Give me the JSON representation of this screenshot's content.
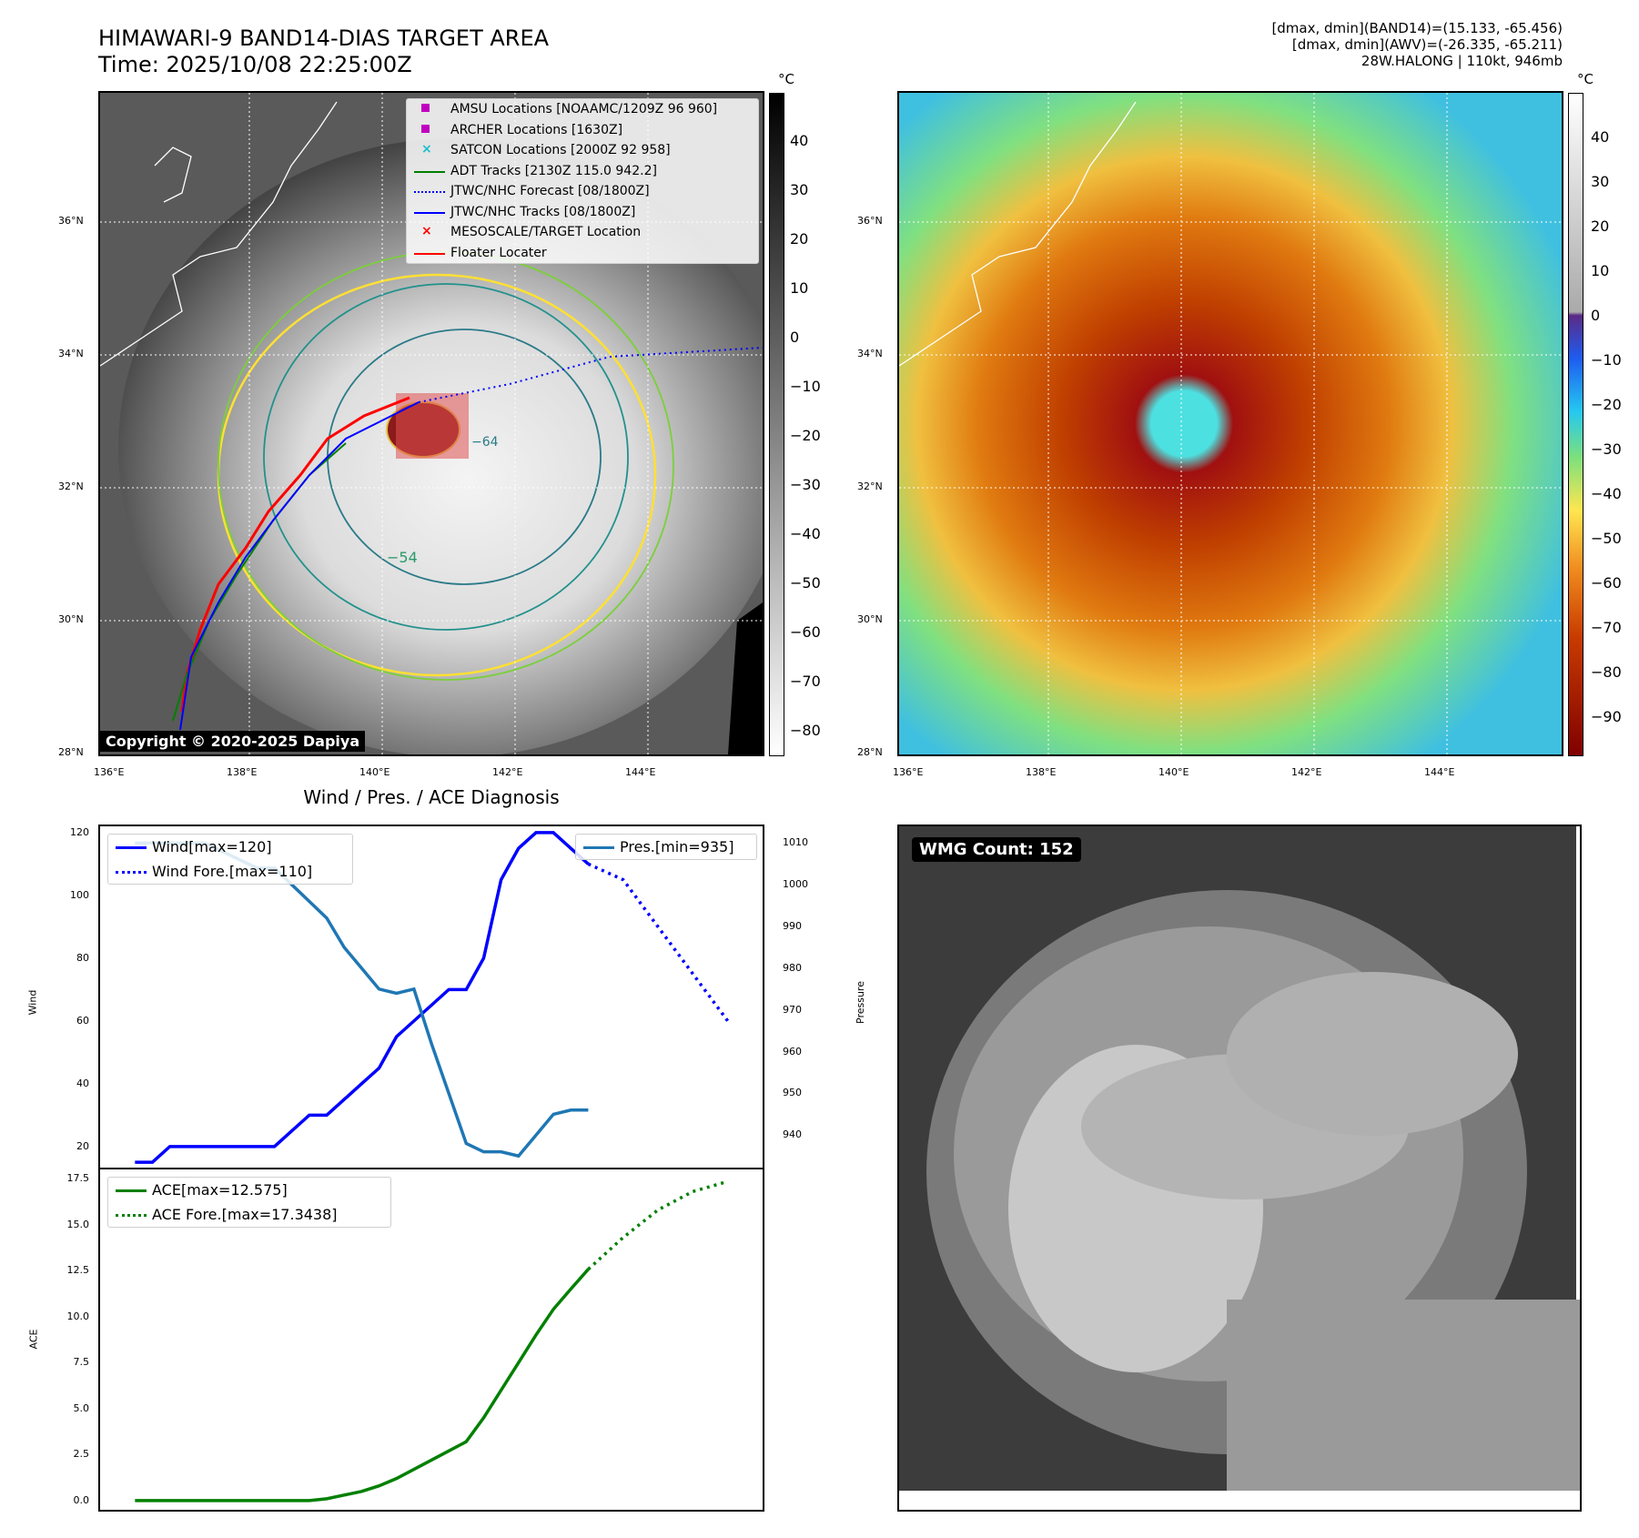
{
  "header": {
    "title_line1": "HIMAWARI-9 BAND14-DIAS TARGET AREA",
    "title_line2": "Time: 2025/10/08 22:25:00Z",
    "info_line1": "[dmax, dmin](BAND14)=(15.133, -65.456)",
    "info_line2": "[dmax, dmin](AWV)=(-26.335, -65.211)",
    "info_line3": "28W.HALONG | 110kt, 946mb"
  },
  "map": {
    "lat_labels": [
      "36°N",
      "34°N",
      "32°N",
      "30°N",
      "28°N"
    ],
    "lon_labels": [
      "136°E",
      "138°E",
      "140°E",
      "142°E",
      "144°E"
    ],
    "copyright": "Copyright © 2020-2025 Dapiya",
    "contour_labels": [
      "−54",
      "−64"
    ],
    "legend": [
      {
        "label": "AMSU Locations [NOAAMC/1209Z 96 960]",
        "color": "#c000c0",
        "marker": "square"
      },
      {
        "label": "ARCHER Locations [1630Z]",
        "color": "#c000c0",
        "marker": "square"
      },
      {
        "label": "SATCON Locations [2000Z 92 958]",
        "color": "#17becf",
        "marker": "x"
      },
      {
        "label": "ADT Tracks [2130Z 115.0 942.2]",
        "color": "#008000",
        "marker": "line"
      },
      {
        "label": "JTWC/NHC Forecast [08/1800Z]",
        "color": "#0000ff",
        "marker": "dotted"
      },
      {
        "label": "JTWC/NHC Tracks [08/1800Z]",
        "color": "#0000ff",
        "marker": "dotline"
      },
      {
        "label": "MESOSCALE/TARGET Location",
        "color": "#ff0000",
        "marker": "x"
      },
      {
        "label": "Floater Locater",
        "color": "#ff0000",
        "marker": "line"
      }
    ]
  },
  "colorbar_left": {
    "unit": "°C",
    "ticks": [
      "40",
      "30",
      "20",
      "10",
      "0",
      "−10",
      "−20",
      "−30",
      "−40",
      "−50",
      "−60",
      "−70",
      "−80"
    ]
  },
  "colorbar_right": {
    "unit": "°C",
    "ticks": [
      "40",
      "30",
      "20",
      "10",
      "0",
      "−10",
      "−20",
      "−30",
      "−40",
      "−50",
      "−60",
      "−70",
      "−80",
      "−90"
    ]
  },
  "diag": {
    "title": "Wind / Pres. / ACE Diagnosis",
    "wind_ylabel": "Wind",
    "pres_ylabel": "Pressure",
    "ace_ylabel": "ACE",
    "wind_ticks": [
      "120",
      "100",
      "80",
      "60",
      "40",
      "20"
    ],
    "pres_ticks": [
      "1010",
      "1000",
      "990",
      "980",
      "970",
      "960",
      "950",
      "940"
    ],
    "ace_ticks": [
      "17.5",
      "15.0",
      "12.5",
      "10.0",
      "7.5",
      "5.0",
      "2.5",
      "0.0"
    ],
    "legend_wind": "Wind[max=120]",
    "legend_windfore": "Wind Fore.[max=110]",
    "legend_pres": "Pres.[min=935]",
    "legend_ace": "ACE[max=12.575]",
    "legend_acefore": "ACE Fore.[max=17.3438]",
    "colors": {
      "wind": "#0000ff",
      "pres": "#1f77b4",
      "ace": "#008000"
    }
  },
  "wmg": {
    "label": "WMG Count: 152"
  },
  "chart_data": [
    {
      "type": "line",
      "title": "Wind / Pres. / ACE Diagnosis",
      "ylabel": "Wind",
      "ylim": [
        13,
        122
      ],
      "series": [
        {
          "name": "Wind[max=120]",
          "x": [
            0,
            1,
            2,
            3,
            4,
            5,
            6,
            7,
            8,
            9,
            10,
            11,
            12,
            13,
            14,
            15,
            16,
            17,
            18,
            19,
            20,
            21,
            22,
            23,
            24,
            25,
            26
          ],
          "values": [
            15,
            15,
            20,
            20,
            20,
            20,
            20,
            20,
            20,
            25,
            30,
            30,
            35,
            40,
            45,
            55,
            60,
            65,
            70,
            70,
            80,
            105,
            115,
            120,
            120,
            115,
            110
          ]
        },
        {
          "name": "Wind Fore.[max=110]",
          "x": [
            26,
            28,
            30,
            32,
            34
          ],
          "values": [
            110,
            105,
            90,
            75,
            60
          ]
        }
      ]
    },
    {
      "type": "line",
      "ylabel": "Pressure",
      "ylim": [
        932,
        1014
      ],
      "series": [
        {
          "name": "Pres.[min=935]",
          "x": [
            0,
            1,
            2,
            3,
            4,
            5,
            6,
            7,
            8,
            9,
            10,
            11,
            12,
            13,
            14,
            15,
            16,
            17,
            18,
            19,
            20,
            21,
            22,
            23,
            24,
            25,
            26
          ],
          "values": [
            1010,
            1010,
            1010,
            1010,
            1010,
            1008,
            1006,
            1004,
            1004,
            1000,
            996,
            992,
            985,
            980,
            975,
            974,
            975,
            962,
            950,
            938,
            936,
            936,
            935,
            940,
            945,
            946,
            946
          ]
        }
      ]
    },
    {
      "type": "line",
      "ylabel": "ACE",
      "ylim": [
        -0.5,
        18
      ],
      "series": [
        {
          "name": "ACE[max=12.575]",
          "x": [
            0,
            2,
            4,
            6,
            8,
            10,
            11,
            12,
            13,
            14,
            15,
            16,
            17,
            18,
            19,
            20,
            21,
            22,
            23,
            24,
            25,
            26
          ],
          "values": [
            0,
            0,
            0,
            0,
            0,
            0,
            0.1,
            0.3,
            0.5,
            0.8,
            1.2,
            1.7,
            2.2,
            2.7,
            3.2,
            4.5,
            6.0,
            7.5,
            9.0,
            10.4,
            11.5,
            12.575
          ]
        },
        {
          "name": "ACE Fore.[max=17.3438]",
          "x": [
            26,
            28,
            30,
            32,
            34
          ],
          "values": [
            12.575,
            14.3,
            15.8,
            16.8,
            17.3438
          ]
        }
      ]
    }
  ]
}
